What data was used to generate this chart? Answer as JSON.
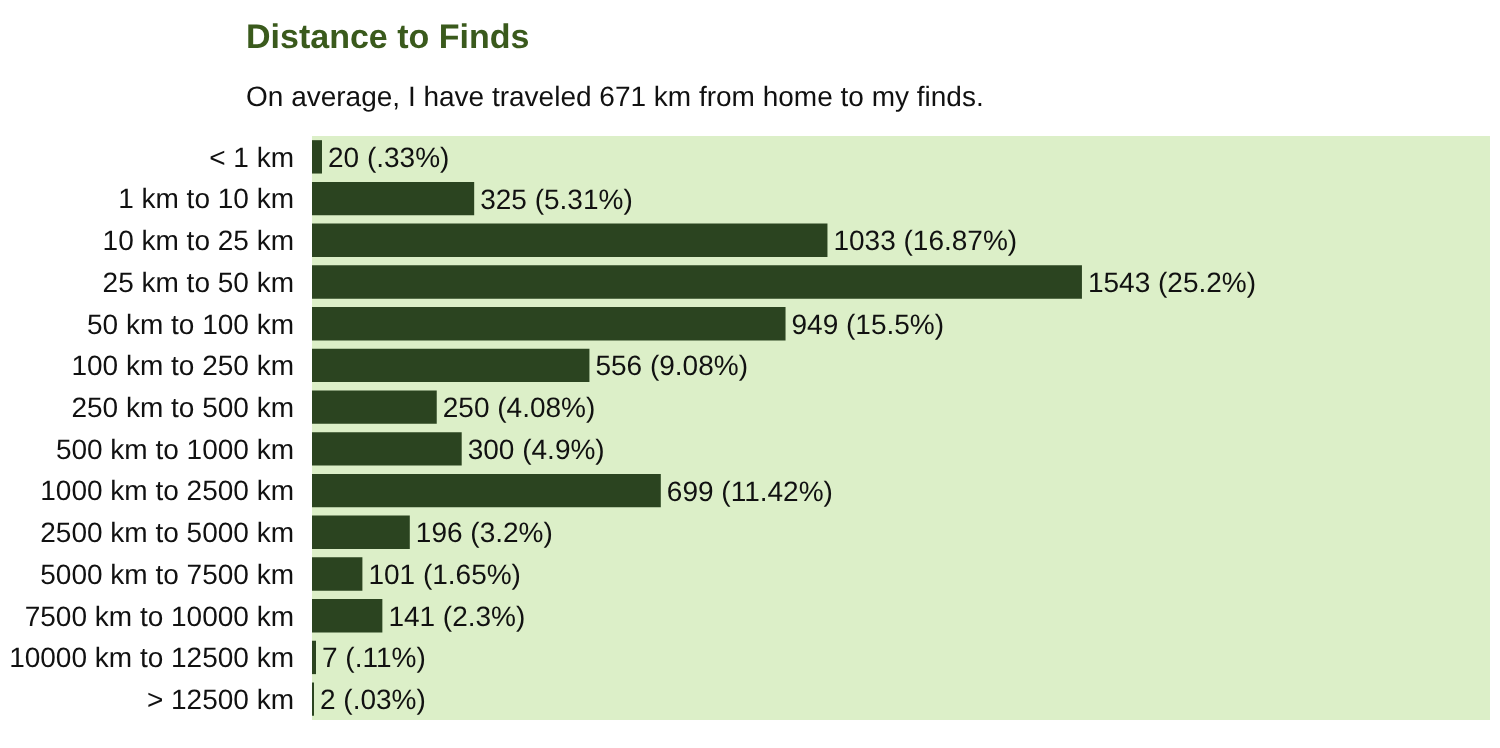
{
  "chart_data": {
    "type": "bar",
    "orientation": "horizontal",
    "title": "Distance to Finds",
    "subtitle": "On average, I have traveled 671 km from home to my finds.",
    "categories": [
      "< 1 km",
      "1 km to 10 km",
      "10 km to 25 km",
      "25 km to 50 km",
      "50 km to 100 km",
      "100 km to 250 km",
      "250 km to 500 km",
      "500 km to 1000 km",
      "1000 km to 2500 km",
      "2500 km to 5000 km",
      "5000 km to 7500 km",
      "7500 km to 10000 km",
      "10000 km to 12500 km",
      "> 12500 km"
    ],
    "values": [
      20,
      325,
      1033,
      1543,
      949,
      556,
      250,
      300,
      699,
      196,
      101,
      141,
      7,
      2
    ],
    "value_labels": [
      "20 (.33%)",
      "325 (5.31%)",
      "1033 (16.87%)",
      "1543 (25.2%)",
      "949 (15.5%)",
      "556 (9.08%)",
      "250 (4.08%)",
      "300 (4.9%)",
      "699 (11.42%)",
      "196 (3.2%)",
      "101 (1.65%)",
      "141 (2.3%)",
      "7 (.11%)",
      "2 (.03%)"
    ],
    "color": "#2b4420",
    "grid": false,
    "legend": false
  }
}
